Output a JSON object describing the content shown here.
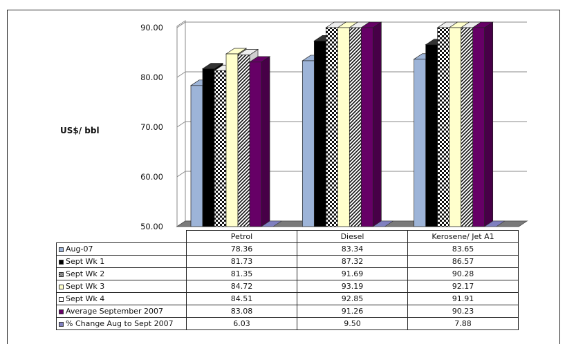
{
  "chart_data": {
    "type": "bar",
    "ylabel": "US$/ bbl",
    "ylim": [
      50,
      90
    ],
    "yticks": [
      "50.00",
      "60.00",
      "70.00",
      "80.00",
      "90.00"
    ],
    "grid": true,
    "three_d": true,
    "categories": [
      "Petrol",
      "Diesel",
      "Kerosene/ Jet A1"
    ],
    "series": [
      {
        "name": "Aug-07",
        "values": [
          "78.36",
          "83.34",
          "83.65"
        ],
        "color": "#9db4d8",
        "pattern": "solid"
      },
      {
        "name": "Sept Wk 1",
        "values": [
          "81.73",
          "87.32",
          "86.57"
        ],
        "color": "#000000",
        "pattern": "solid"
      },
      {
        "name": "Sept Wk 2",
        "values": [
          "81.35",
          "91.69",
          "90.28"
        ],
        "color": "#000000",
        "pattern": "checker"
      },
      {
        "name": "Sept Wk 3",
        "values": [
          "84.72",
          "93.19",
          "92.17"
        ],
        "color": "#ffffcc",
        "pattern": "solid"
      },
      {
        "name": "Sept Wk 4",
        "values": [
          "84.51",
          "92.85",
          "91.91"
        ],
        "color": "#000000",
        "pattern": "diagonal"
      },
      {
        "name": "Average September 2007",
        "values": [
          "83.08",
          "91.26",
          "90.23"
        ],
        "color": "#660066",
        "pattern": "solid"
      },
      {
        "name": "% Change Aug to Sept 2007",
        "values": [
          "6.03",
          "9.50",
          "7.88"
        ],
        "color": "#8080c0",
        "pattern": "solid"
      }
    ]
  }
}
